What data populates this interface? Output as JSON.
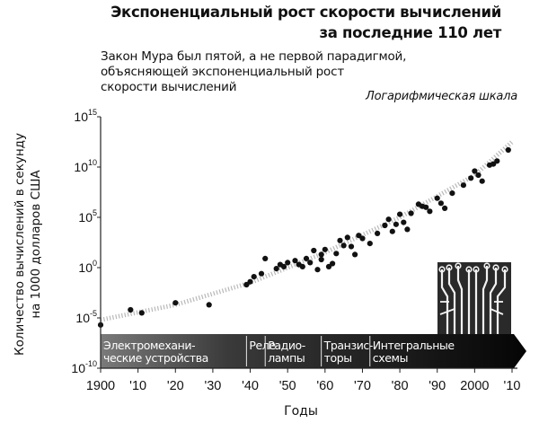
{
  "chart_data": {
    "type": "scatter",
    "title_lines": [
      "Экспоненциальный рост скорости вычислений",
      "за последние 110 лет"
    ],
    "subtitle_lines": [
      "Закон Мура был пятой, а не первой парадигмой,",
      "объясняющей экспоненциальный рост",
      "скорости вычислений"
    ],
    "scale_note": "Логарифмическая шкала",
    "xlabel": "Годы",
    "ylabel_lines": [
      "Количество вычислений в секунду",
      "на 1000 долларов США"
    ],
    "xlim": [
      1900,
      2010
    ],
    "ylim_log10": [
      -10,
      15
    ],
    "y_scale": "log",
    "x_ticks": [
      {
        "value": 1900,
        "label": "1900"
      },
      {
        "value": 1910,
        "label": "'10"
      },
      {
        "value": 1920,
        "label": "'20"
      },
      {
        "value": 1930,
        "label": "'30"
      },
      {
        "value": 1940,
        "label": "'40"
      },
      {
        "value": 1950,
        "label": "'50"
      },
      {
        "value": 1960,
        "label": "'60"
      },
      {
        "value": 1970,
        "label": "'70"
      },
      {
        "value": 1980,
        "label": "'80"
      },
      {
        "value": 1990,
        "label": "'90"
      },
      {
        "value": 2000,
        "label": "2000"
      },
      {
        "value": 2010,
        "label": "'10"
      }
    ],
    "y_ticks": [
      {
        "exp": -10,
        "label": "10",
        "sup": "-10"
      },
      {
        "exp": -5,
        "label": "10",
        "sup": "-5"
      },
      {
        "exp": 0,
        "label": "10",
        "sup": "0"
      },
      {
        "exp": 5,
        "label": "10",
        "sup": "5"
      },
      {
        "exp": 10,
        "label": "10",
        "sup": "10"
      },
      {
        "exp": 15,
        "label": "10",
        "sup": "15"
      }
    ],
    "trend": [
      [
        1900,
        -5.2
      ],
      [
        1920,
        -3.7
      ],
      [
        1940,
        -1.5
      ],
      [
        1960,
        1.5
      ],
      [
        1980,
        5.0
      ],
      [
        2000,
        9.2
      ],
      [
        2010,
        12.5
      ]
    ],
    "points": [
      [
        1900,
        -5.7
      ],
      [
        1908,
        -4.2
      ],
      [
        1911,
        -4.5
      ],
      [
        1920,
        -3.5
      ],
      [
        1929,
        -3.7
      ],
      [
        1939,
        -1.7
      ],
      [
        1940,
        -1.4
      ],
      [
        1941,
        -0.9
      ],
      [
        1943,
        -0.6
      ],
      [
        1944,
        0.9
      ],
      [
        1947,
        -0.1
      ],
      [
        1948,
        0.3
      ],
      [
        1949,
        0.1
      ],
      [
        1950,
        0.5
      ],
      [
        1952,
        0.7
      ],
      [
        1953,
        0.3
      ],
      [
        1954,
        0.1
      ],
      [
        1955,
        0.9
      ],
      [
        1956,
        0.5
      ],
      [
        1957,
        1.7
      ],
      [
        1958,
        -0.2
      ],
      [
        1959,
        1.3
      ],
      [
        1959,
        0.8
      ],
      [
        1960,
        1.8
      ],
      [
        1961,
        0.1
      ],
      [
        1962,
        0.4
      ],
      [
        1963,
        1.4
      ],
      [
        1964,
        2.7
      ],
      [
        1965,
        2.2
      ],
      [
        1966,
        3.0
      ],
      [
        1967,
        2.1
      ],
      [
        1968,
        1.3
      ],
      [
        1969,
        3.2
      ],
      [
        1970,
        2.9
      ],
      [
        1972,
        2.4
      ],
      [
        1974,
        3.4
      ],
      [
        1976,
        4.2
      ],
      [
        1977,
        4.8
      ],
      [
        1978,
        3.6
      ],
      [
        1979,
        4.3
      ],
      [
        1980,
        5.3
      ],
      [
        1981,
        4.5
      ],
      [
        1982,
        3.8
      ],
      [
        1983,
        5.4
      ],
      [
        1985,
        6.3
      ],
      [
        1986,
        6.1
      ],
      [
        1987,
        6.0
      ],
      [
        1988,
        5.6
      ],
      [
        1990,
        6.9
      ],
      [
        1991,
        6.4
      ],
      [
        1992,
        5.9
      ],
      [
        1994,
        7.4
      ],
      [
        1997,
        8.2
      ],
      [
        1999,
        8.9
      ],
      [
        2000,
        9.6
      ],
      [
        2001,
        9.2
      ],
      [
        2002,
        8.6
      ],
      [
        2004,
        10.2
      ],
      [
        2005,
        10.3
      ],
      [
        2006,
        10.6
      ],
      [
        2009,
        11.7
      ]
    ],
    "paradigms": [
      {
        "lines": [
          "Электромехани-",
          "ческие устройства"
        ],
        "start": 1900,
        "end": 1939
      },
      {
        "lines": [
          "Реле"
        ],
        "start": 1939,
        "end": 1944
      },
      {
        "lines": [
          "Радио-",
          "лампы"
        ],
        "start": 1944,
        "end": 1959
      },
      {
        "lines": [
          "Транзис-",
          "торы"
        ],
        "start": 1959,
        "end": 1972
      },
      {
        "lines": [
          "Интегральные",
          "схемы"
        ],
        "start": 1972,
        "end": 2010
      }
    ]
  }
}
